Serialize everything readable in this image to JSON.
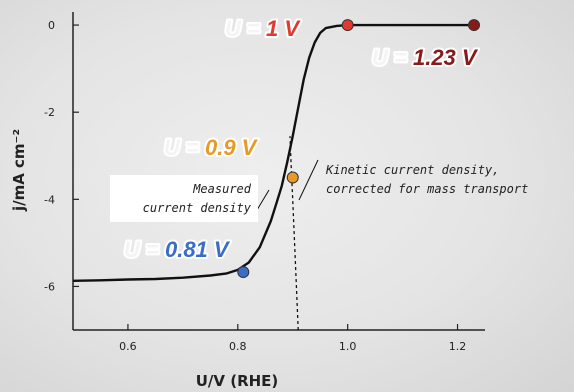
{
  "chart_data": {
    "type": "line",
    "title": "",
    "xlabel": "U/V (RHE)",
    "ylabel": "j/mA cm⁻²",
    "xlim": [
      0.5,
      1.25
    ],
    "ylim": [
      -7,
      0.3
    ],
    "x_ticks": [
      0.6,
      0.8,
      1.0,
      1.2
    ],
    "x_tick_labels": [
      "0.6",
      "0.8",
      "1.0",
      "1.2"
    ],
    "y_ticks": [
      0,
      -2,
      -4,
      -6
    ],
    "y_tick_labels": [
      "0",
      "-2",
      "-4",
      "-6"
    ],
    "grid": false,
    "series": [
      {
        "color": "#111111",
        "style": "solid",
        "x": [
          0.5,
          0.55,
          0.6,
          0.65,
          0.7,
          0.75,
          0.78,
          0.8,
          0.82,
          0.84,
          0.86,
          0.87,
          0.88,
          0.89,
          0.9,
          0.91,
          0.92,
          0.93,
          0.94,
          0.95,
          0.96,
          0.98,
          1.0,
          1.1,
          1.23
        ],
        "y": [
          -5.87,
          -5.86,
          -5.84,
          -5.83,
          -5.8,
          -5.75,
          -5.7,
          -5.62,
          -5.45,
          -5.1,
          -4.5,
          -4.1,
          -3.7,
          -3.15,
          -2.55,
          -1.9,
          -1.25,
          -0.75,
          -0.4,
          -0.18,
          -0.07,
          -0.02,
          0.0,
          0.0,
          0.0
        ]
      },
      {
        "color": "#111111",
        "style": "dashed",
        "x": [
          0.91,
          0.905,
          0.9,
          0.897,
          0.895
        ],
        "y": [
          -7.0,
          -5.5,
          -4.0,
          -3.2,
          -2.55
        ]
      }
    ],
    "points": [
      {
        "x": 0.81,
        "y": -5.67,
        "color": "#3a6cc8"
      },
      {
        "x": 0.9,
        "y": -3.5,
        "color": "#e89a28"
      },
      {
        "x": 1.0,
        "y": 0.0,
        "color": "#e03a30"
      },
      {
        "x": 1.23,
        "y": 0.0,
        "color": "#8a1a1a"
      }
    ],
    "annotations": {
      "u1": {
        "prefix": "U = ",
        "value": "1 V",
        "color": "#e03a30"
      },
      "u123": {
        "prefix": "U = ",
        "value": "1.23 V",
        "color": "#8a1a1a"
      },
      "u09": {
        "prefix": "U = ",
        "value": "0.9 V",
        "color": "#e89a28"
      },
      "u081": {
        "prefix": "U = ",
        "value": "0.81 V",
        "color": "#3a6cc8"
      },
      "measured": [
        "Measured",
        "current density"
      ],
      "kinetic": [
        "Kinetic current density,",
        "corrected for mass transport"
      ]
    }
  }
}
